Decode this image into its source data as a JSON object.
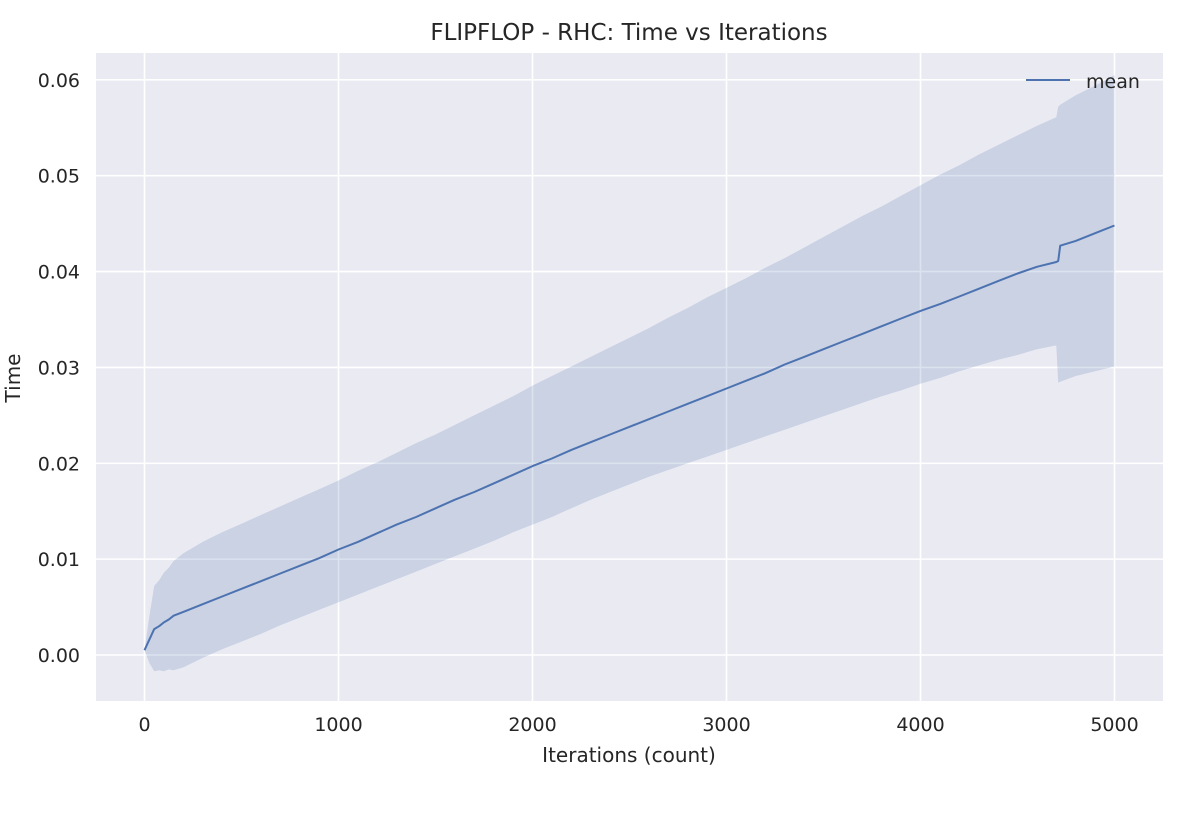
{
  "chart_data": {
    "type": "line",
    "title": "FLIPFLOP - RHC: Time vs Iterations",
    "xlabel": "Iterations (count)",
    "ylabel": "Time",
    "xlim": [
      -250,
      5250
    ],
    "ylim": [
      -0.0048,
      0.0628
    ],
    "xticks": [
      0,
      1000,
      2000,
      3000,
      4000,
      5000
    ],
    "yticks": [
      0.0,
      0.01,
      0.02,
      0.03,
      0.04,
      0.05,
      0.06
    ],
    "xtick_labels": [
      "0",
      "1000",
      "2000",
      "3000",
      "4000",
      "5000"
    ],
    "ytick_labels": [
      "0.00",
      "0.01",
      "0.02",
      "0.03",
      "0.04",
      "0.05",
      "0.06"
    ],
    "grid": true,
    "legend_position": "top-right",
    "colors": {
      "background": "#eaeaf2",
      "grid": "#ffffff",
      "line": "#4c72b0",
      "band": "#4c72b0"
    },
    "series": [
      {
        "name": "mean",
        "x": [
          0,
          25,
          50,
          75,
          100,
          125,
          150,
          200,
          300,
          400,
          500,
          600,
          700,
          800,
          900,
          1000,
          1100,
          1200,
          1300,
          1400,
          1500,
          1600,
          1700,
          1800,
          1900,
          2000,
          2100,
          2200,
          2300,
          2400,
          2500,
          2600,
          2700,
          2800,
          2900,
          3000,
          3100,
          3200,
          3300,
          3400,
          3500,
          3600,
          3700,
          3800,
          3900,
          4000,
          4100,
          4200,
          4300,
          4400,
          4500,
          4600,
          4700,
          4710,
          4720,
          4800,
          4900,
          5000
        ],
        "y": [
          0.0005,
          0.0016,
          0.0027,
          0.003,
          0.0034,
          0.0037,
          0.0041,
          0.0045,
          0.0053,
          0.0061,
          0.0069,
          0.0077,
          0.0085,
          0.0093,
          0.0101,
          0.011,
          0.0118,
          0.0127,
          0.0136,
          0.0144,
          0.0153,
          0.0162,
          0.017,
          0.0179,
          0.0188,
          0.0197,
          0.0205,
          0.0214,
          0.0222,
          0.023,
          0.0238,
          0.0246,
          0.0254,
          0.0262,
          0.027,
          0.0278,
          0.0286,
          0.0294,
          0.0303,
          0.0311,
          0.0319,
          0.0327,
          0.0335,
          0.0343,
          0.0351,
          0.0359,
          0.0366,
          0.0374,
          0.0382,
          0.039,
          0.0398,
          0.0405,
          0.041,
          0.0411,
          0.0427,
          0.0432,
          0.044,
          0.0448
        ],
        "upper": [
          0.0005,
          0.004,
          0.0072,
          0.0078,
          0.0086,
          0.0091,
          0.0098,
          0.0106,
          0.0118,
          0.0128,
          0.0137,
          0.0146,
          0.0155,
          0.0164,
          0.0173,
          0.0182,
          0.0192,
          0.0201,
          0.0211,
          0.0221,
          0.023,
          0.024,
          0.025,
          0.026,
          0.027,
          0.0281,
          0.0291,
          0.0301,
          0.0311,
          0.0321,
          0.0331,
          0.0341,
          0.0352,
          0.0362,
          0.0373,
          0.0383,
          0.0393,
          0.0404,
          0.0414,
          0.0425,
          0.0436,
          0.0447,
          0.0458,
          0.0468,
          0.0479,
          0.049,
          0.0501,
          0.0511,
          0.0522,
          0.0532,
          0.0542,
          0.0552,
          0.0561,
          0.0572,
          0.0574,
          0.0584,
          0.0594,
          0.0605
        ],
        "lower": [
          0.0005,
          -0.0008,
          -0.0017,
          -0.0016,
          -0.0017,
          -0.0015,
          -0.0016,
          -0.0013,
          -0.0003,
          0.0006,
          0.0014,
          0.0022,
          0.0031,
          0.0039,
          0.0047,
          0.0055,
          0.0063,
          0.0071,
          0.0079,
          0.0087,
          0.0095,
          0.0103,
          0.0111,
          0.0119,
          0.0128,
          0.0136,
          0.0144,
          0.0153,
          0.0162,
          0.017,
          0.0178,
          0.0186,
          0.0193,
          0.02,
          0.0207,
          0.0214,
          0.0221,
          0.0228,
          0.0235,
          0.0242,
          0.0249,
          0.0256,
          0.0263,
          0.027,
          0.0276,
          0.0283,
          0.0289,
          0.0296,
          0.0302,
          0.0308,
          0.0313,
          0.0319,
          0.0323,
          0.0284,
          0.0285,
          0.0291,
          0.0296,
          0.0301
        ]
      }
    ]
  }
}
